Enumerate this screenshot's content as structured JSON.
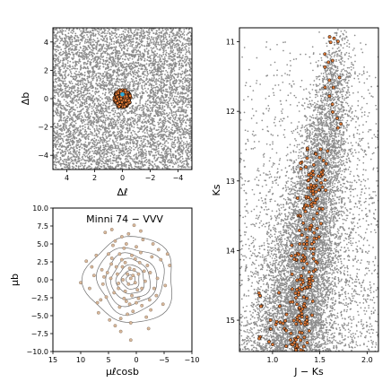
{
  "chart_data": [
    {
      "type": "scatter",
      "panel": "spatial",
      "xlabel": "Δℓ",
      "ylabel": "Δb",
      "xlim": [
        -5,
        5
      ],
      "ylim": [
        -5,
        5
      ],
      "x_inverted": true,
      "xticks": [
        4,
        2,
        0,
        -2,
        -4
      ],
      "xtick_labels": [
        "4",
        "2",
        "0",
        "−2",
        "−4"
      ],
      "yticks": [
        -4,
        -2,
        0,
        2,
        4
      ],
      "ytick_labels": [
        "−4",
        "−2",
        "0",
        "2",
        "4"
      ],
      "grid": false,
      "series": [
        {
          "role": "field stars",
          "color": "#8c8c8c",
          "count_estimate": 6000,
          "distribution": "uniform over field"
        },
        {
          "role": "cluster members",
          "color": "#e07b39",
          "edge_color": "#000000",
          "center": [
            0,
            0
          ],
          "radius": 0.6,
          "count_estimate": 260
        },
        {
          "role": "cluster centre",
          "color": "#2aa8d8",
          "center": [
            0,
            0.3
          ]
        }
      ]
    },
    {
      "type": "scatter",
      "panel": "proper-motion",
      "title": "Minni 74  −  VVV",
      "xlabel": "μℓcosb",
      "ylabel": "μb",
      "xlim": [
        15,
        -10
      ],
      "ylim": [
        -10,
        10
      ],
      "xticks": [
        15,
        10,
        5,
        0,
        -5,
        -10
      ],
      "xtick_labels": [
        "15",
        "10",
        "5",
        "0",
        "−5",
        "−10"
      ],
      "yticks": [
        -10.0,
        -7.5,
        -5.0,
        -2.5,
        0.0,
        2.5,
        5.0,
        7.5,
        10.0
      ],
      "ytick_labels": [
        "−10.0",
        "−7.5",
        "−5.0",
        "−2.5",
        "0.0",
        "2.5",
        "5.0",
        "7.5",
        "10.0"
      ],
      "grid": false,
      "contour_center": [
        1,
        0
      ],
      "contour_levels_radii": [
        [
          8,
          6
        ],
        [
          6,
          4.6
        ],
        [
          4.6,
          3.6
        ],
        [
          3.5,
          2.8
        ],
        [
          2.5,
          2.0
        ],
        [
          1.6,
          1.3
        ],
        [
          0.8,
          0.7
        ]
      ],
      "points": [
        [
          1.0,
          0.2
        ],
        [
          2.5,
          1.8
        ],
        [
          -1.0,
          -1.2
        ],
        [
          3.2,
          -0.5
        ],
        [
          0.2,
          2.9
        ],
        [
          -2.5,
          1.0
        ],
        [
          4.5,
          2.2
        ],
        [
          1.8,
          -3.0
        ],
        [
          -0.8,
          3.8
        ],
        [
          5.8,
          0.4
        ],
        [
          -3.6,
          -2.2
        ],
        [
          2.2,
          4.4
        ],
        [
          0.6,
          -4.4
        ],
        [
          6.4,
          -2.8
        ],
        [
          -4.4,
          2.8
        ],
        [
          3.8,
          5.4
        ],
        [
          -1.8,
          -5.2
        ],
        [
          7.2,
          3.4
        ],
        [
          -5.2,
          -0.8
        ],
        [
          1.4,
          6.4
        ],
        [
          4.8,
          -5.6
        ],
        [
          -3.0,
          5.0
        ],
        [
          8.4,
          -1.2
        ],
        [
          -6.0,
          2.0
        ],
        [
          2.8,
          -7.2
        ],
        [
          9.0,
          2.6
        ],
        [
          0.4,
          7.6
        ],
        [
          5.6,
          6.6
        ],
        [
          -2.2,
          -6.8
        ],
        [
          6.8,
          -4.6
        ],
        [
          1.2,
          1.6
        ],
        [
          -0.4,
          0.8
        ],
        [
          2.0,
          -1.6
        ],
        [
          3.4,
          0.8
        ],
        [
          -1.6,
          -0.2
        ],
        [
          0.8,
          -2.2
        ],
        [
          4.0,
          -1.8
        ],
        [
          -2.8,
          3.2
        ],
        [
          2.6,
          2.8
        ],
        [
          1.6,
          -4.8
        ],
        [
          -3.8,
          0.2
        ],
        [
          5.0,
          3.6
        ],
        [
          0.0,
          4.6
        ],
        [
          3.0,
          -3.8
        ],
        [
          -1.2,
          5.6
        ],
        [
          7.6,
          0.6
        ],
        [
          1.0,
          -6.0
        ],
        [
          -4.8,
          -3.4
        ],
        [
          4.2,
          4.8
        ],
        [
          6.0,
          -0.6
        ],
        [
          2.4,
          0.0
        ],
        [
          -0.2,
          -1.4
        ],
        [
          1.4,
          -0.6
        ],
        [
          0.4,
          1.4
        ],
        [
          2.2,
          -2.6
        ],
        [
          -2.0,
          2.0
        ],
        [
          3.6,
          1.8
        ],
        [
          0.8,
          3.4
        ],
        [
          -1.0,
          -3.6
        ],
        [
          4.6,
          0.2
        ],
        [
          1.8,
          5.0
        ],
        [
          -2.6,
          -4.2
        ],
        [
          5.4,
          -2.4
        ],
        [
          0.2,
          -0.4
        ],
        [
          -0.6,
          2.4
        ],
        [
          3.0,
          3.6
        ],
        [
          1.2,
          -3.4
        ],
        [
          -3.2,
          -1.2
        ],
        [
          2.8,
          -5.4
        ],
        [
          6.2,
          1.4
        ],
        [
          0.6,
          0.6
        ],
        [
          -1.4,
          1.2
        ],
        [
          2.0,
          2.4
        ],
        [
          3.2,
          -1.2
        ],
        [
          -0.4,
          -2.6
        ],
        [
          4.4,
          3.0
        ],
        [
          1.6,
          0.8
        ],
        [
          -2.4,
          -2.8
        ],
        [
          5.2,
          1.0
        ],
        [
          0.0,
          -3.2
        ],
        [
          2.6,
          6.0
        ],
        [
          -0.8,
          6.8
        ],
        [
          3.8,
          -6.4
        ],
        [
          7.0,
          -3.2
        ],
        [
          -4.0,
          4.2
        ],
        [
          8.0,
          1.8
        ],
        [
          1.0,
          -8.4
        ],
        [
          -5.6,
          3.6
        ],
        [
          4.4,
          7.0
        ],
        [
          10.0,
          -0.4
        ]
      ]
    },
    {
      "type": "scatter",
      "panel": "cmd",
      "xlabel": "J − Ks",
      "ylabel": "Ks",
      "xlim": [
        0.65,
        2.12
      ],
      "ylim": [
        15.45,
        10.8
      ],
      "y_inverted": true,
      "xticks": [
        1.0,
        1.5,
        2.0
      ],
      "xtick_labels": [
        "1.0",
        "1.5",
        "2.0"
      ],
      "yticks": [
        11,
        12,
        13,
        14,
        15
      ],
      "ytick_labels": [
        "11",
        "12",
        "13",
        "14",
        "15"
      ],
      "grid": false,
      "series": [
        {
          "role": "field stars",
          "color": "#8c8c8c",
          "count_estimate": 9000,
          "description": "field population with a band running from J−Ks≈1.1 at Ks=15.4 to J−Ks≈1.75 at Ks=10.8, spread toward red at faint magnitudes"
        },
        {
          "role": "cluster members",
          "color": "#e07b39",
          "edge_color": "#000000",
          "count_estimate": 240,
          "description": "concentrated on J−Ks≈1.2–1.6 for Ks 12.5–15.4, sparse red giants near J−Ks≈1.55–1.75, Ks 10.9–12.5"
        }
      ]
    }
  ]
}
